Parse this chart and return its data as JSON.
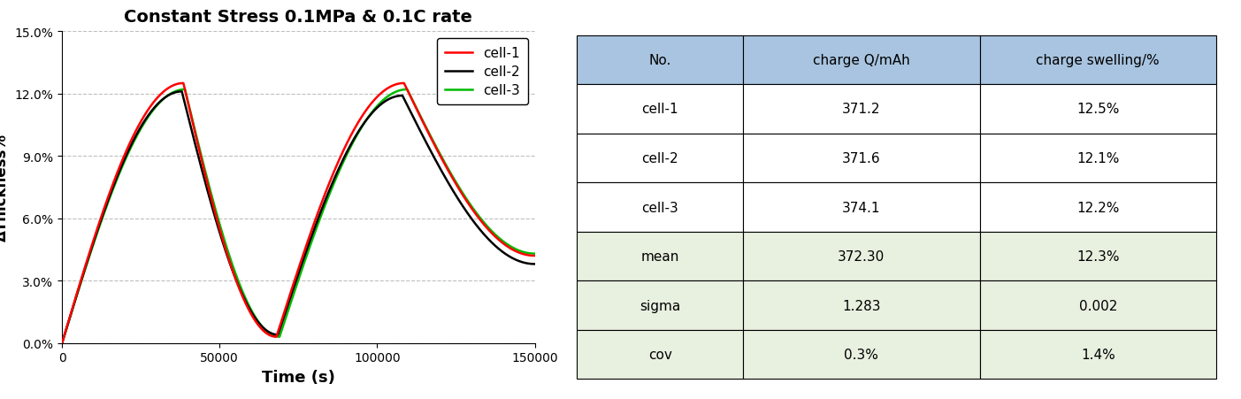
{
  "title": "Constant Stress 0.1MPa & 0.1C rate",
  "xlabel": "Time (s)",
  "ylabel": "ΔThickness%",
  "xlim": [
    0,
    150000
  ],
  "ylim": [
    0,
    0.15
  ],
  "yticks": [
    0.0,
    0.03,
    0.06,
    0.09,
    0.12,
    0.15
  ],
  "ytick_labels": [
    "0.0%",
    "3.0%",
    "6.0%",
    "9.0%",
    "12.0%",
    "15.0%"
  ],
  "xticks": [
    0,
    50000,
    100000,
    150000
  ],
  "cell_colors": [
    "#ff0000",
    "#000000",
    "#00bb00"
  ],
  "cell_labels": [
    "cell-1",
    "cell-2",
    "cell-3"
  ],
  "table_headers": [
    "No.",
    "charge Q/mAh",
    "charge swelling/%"
  ],
  "table_rows": [
    [
      "cell-1",
      "371.2",
      "12.5%"
    ],
    [
      "cell-2",
      "371.6",
      "12.1%"
    ],
    [
      "cell-3",
      "374.1",
      "12.2%"
    ],
    [
      "mean",
      "372.30",
      "12.3%"
    ],
    [
      "sigma",
      "1.283",
      "0.002"
    ],
    [
      "cov",
      "0.3%",
      "1.4%"
    ]
  ],
  "header_bg": "#a8c4e0",
  "white_bg": "#ffffff",
  "green_bg": "#e8f0e0",
  "table_border": "#000000",
  "title_fontsize": 14,
  "axis_label_fontsize": 12,
  "tick_fontsize": 10,
  "legend_fontsize": 11,
  "table_fontsize": 11
}
